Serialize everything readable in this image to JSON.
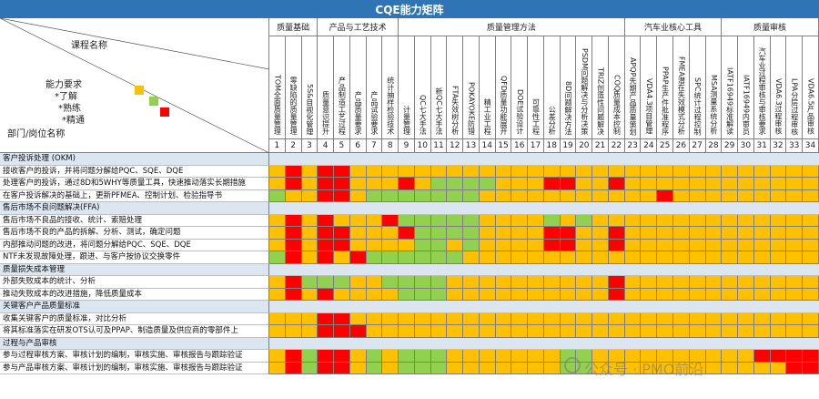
{
  "title": "CQE能力矩阵",
  "corner": {
    "course_label": "课程名称",
    "ability_label": "能力要求",
    "level1": "*了解",
    "level2": "*熟练",
    "level3": "*精通",
    "dept_label": "部门/岗位名称"
  },
  "colors": {
    "header": "#2f75b5",
    "yellow": "#ffc000",
    "green": "#92d050",
    "red": "#ff0000",
    "section": "#dce6f1"
  },
  "groups": [
    {
      "name": "质量基础",
      "span": 3
    },
    {
      "name": "产品与工艺技术",
      "span": 5
    },
    {
      "name": "质量管理方法",
      "span": 14
    },
    {
      "name": "汽车业核心工具",
      "span": 6
    },
    {
      "name": "质量审核",
      "span": 6
    }
  ],
  "columns": [
    "TOM全面质量管理",
    "零缺陷的质量管理",
    "5S&目视化管理",
    "质量意识提升",
    "产品制造工艺过程",
    "产品质量要求",
    "产品试验要求",
    "统计抽样检验技术",
    "计量管理",
    "QC七大手法",
    "新QC七大手法",
    "FTA失效树分析",
    "POKAYOKE防错",
    "精工业工程",
    "QFD质量功能展开",
    "DOE试验设计",
    "可靠性工程",
    "公差分析",
    "8D问题解决方法",
    "PSDM问题解决与分析决策",
    "TRIZ创造性问题解决",
    "COQ质量成本控制",
    "APQP先期产品质量策划",
    "VDA4.3项目管理",
    "PPAP生产件批准程序",
    "FMEA潜在失效模式分析",
    "SPC统计过程控制",
    "MSA测量系统分析",
    "IATF16949标准解读",
    "IATF16949内审员",
    "汽车业过程审核与审核要求",
    "VDA6.3过程审核",
    "LPA分层过程审核",
    "VDA6.5产品审核"
  ],
  "rows": [
    {
      "type": "section",
      "label": "客户投诉处理 (OKM)"
    },
    {
      "type": "data",
      "label": "接收客户的投诉，并将问题分解给PQC、SQE、DQE",
      "cells": "YRYRRYYYYYYYYYYYYYYYYYYYYYYYYYYYYY"
    },
    {
      "type": "data",
      "label": "处理客户的投诉，通过8D和5WHY等质量工具，快速推动落实长期措施",
      "cells": "YRYRRYYYRYGGGGYYYRRYYRYYYYYYYYYYYY"
    },
    {
      "type": "data",
      "label": "在客户投诉解决的基础上，更新PFMEA、控制计划、检验指导书",
      "cells": "GYYRRYGGGGGGGYYYYYYYYYYYRYYYYYYYYY"
    },
    {
      "type": "section",
      "label": "售后市场不良问题解决(FFA)"
    },
    {
      "type": "data",
      "label": "售后市场不良品的接收、统计、索赔处理",
      "cells": "YRYRYYYRGGGGGYYYYGYGYYYYYYYYYYYYYY"
    },
    {
      "type": "data",
      "label": "售后市场不良的产品的拆解、分析、测试，确定问题",
      "cells": "YRYRRYYYRGGGGYYYYRRYYRYYYYYYYYYYYY"
    },
    {
      "type": "data",
      "label": "内部推动问题的改进，将问题分解给PQC、SQE、DQE",
      "cells": "YRYRRYYYYGGYGYYYYRRYYRYYYYYYYYYYYY"
    },
    {
      "type": "data",
      "label": "NTF未发现故障处理，跟进、与客户按协议交换零件",
      "cells": "GRYRYRGGGGGGYYYYYYYYYYYYYYYYYYYYYY"
    },
    {
      "type": "section",
      "label": "质量损失成本管理"
    },
    {
      "type": "data",
      "label": "外部失败成本的统计、分析",
      "cells": "YRGGGYYGGGGYYYYYYYYYYRYYYYYYYYYYYY"
    },
    {
      "type": "data",
      "label": "推动失败成本的改进措施，降低质量成本",
      "cells": "YRYRYYYYGGGYYYYYYYYYYRYYYYYYYYYYYY"
    },
    {
      "type": "section",
      "label": "关键客户产品质量标准"
    },
    {
      "type": "data",
      "label": "收集关键客户的质量标准，对比分析",
      "cells": "YYYRRYYYYYYYYYYYYYYYYYYYYYYYYYYYYY"
    },
    {
      "type": "data",
      "label": "将其标准落实在研发OTS认可及PPAP、制造质量及供应商的零部件上",
      "cells": "YYYRRRYYYYYYYYYYYYYYYYYYYYYYYYYYYY"
    },
    {
      "type": "section",
      "label": "过程与产品审核"
    },
    {
      "type": "data",
      "label": "参与过程审核方案、审核计划的编制，审核实施、审核报告与跟踪验证",
      "cells": "YRGRRYGYGGGYYYYYYYGGYYYYYYYYYYRRRR"
    },
    {
      "type": "data",
      "label": "参与产品审核方案、审核计划的编制，审核实施、审核报告与跟踪验证",
      "cells": "YRGRRYGYGGGYYYYYYYGGYYYYYYYYYYYYRR"
    }
  ],
  "watermark": "公众号 · PMO前沿"
}
